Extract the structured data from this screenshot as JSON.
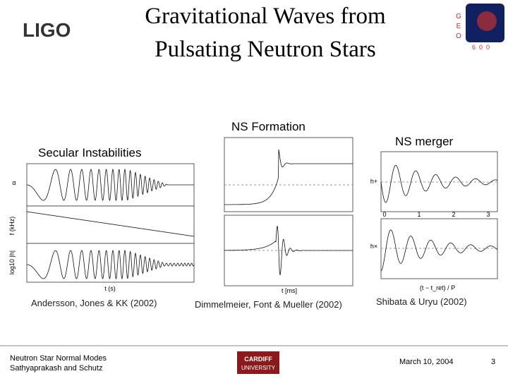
{
  "header": {
    "title_lines": [
      "Gravitational Waves from",
      "Pulsating Neutron Stars"
    ],
    "logo_left": "LIGO",
    "logo_right_letters": [
      "G",
      "E",
      "O"
    ],
    "logo_right_number": "600"
  },
  "panels": [
    {
      "heading": "Secular Instabilities",
      "caption": "Andersson, Jones & KK (2002)",
      "y_labels": [
        "α",
        "f (kHz)",
        "log10 |h|"
      ],
      "x_label": "t (s)"
    },
    {
      "heading": "NS Formation",
      "caption": "Dimmelmeier, Font & Mueller (2002)",
      "x_label": "t [ms]"
    },
    {
      "heading": "NS merger",
      "caption": "Shibata & Uryu (2002)",
      "y_labels": [
        "h+",
        "h×"
      ],
      "x_ticks": [
        "0",
        "1",
        "2",
        "3"
      ],
      "x_label": "(t − t_ret) / P"
    }
  ],
  "footer": {
    "left_lines": [
      "Neutron Star Normal Modes",
      "Sathyaprakash and Schutz"
    ],
    "center_logo": [
      "CARDIFF",
      "UNIVERSITY"
    ],
    "date": "March 10, 2004",
    "page": "3"
  }
}
